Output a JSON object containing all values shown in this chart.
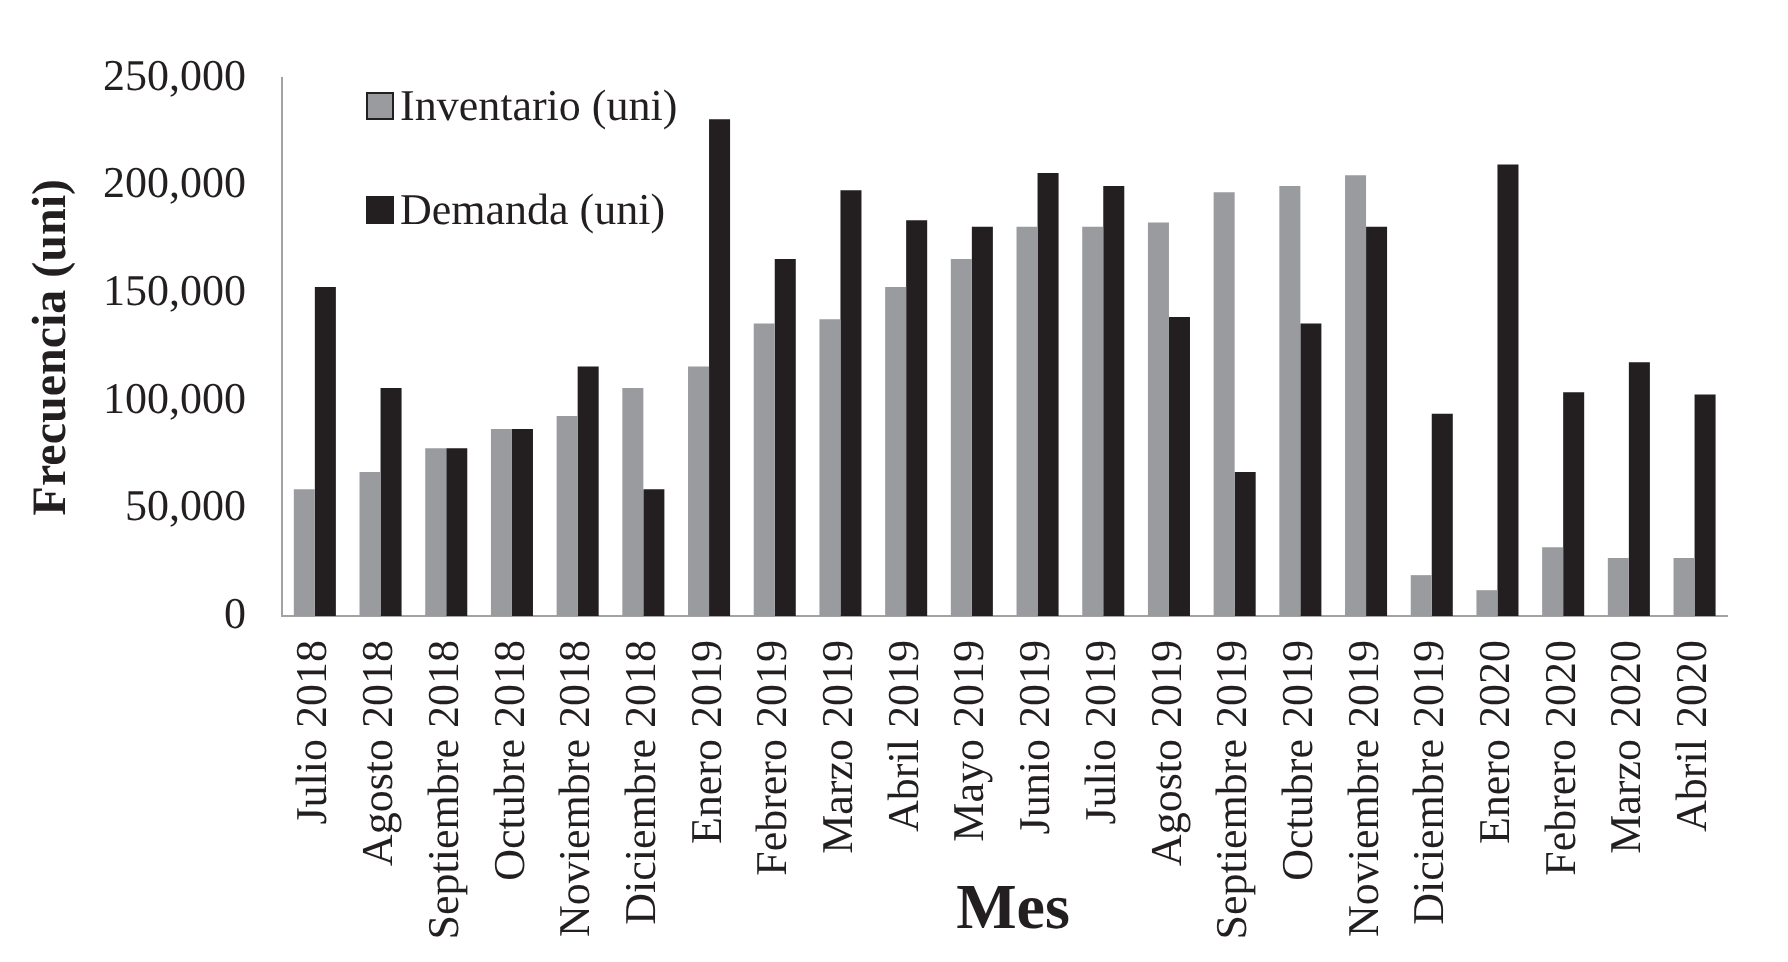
{
  "chart_data": {
    "type": "bar",
    "categories": [
      "Julio 2018",
      "Agosto 2018",
      "Septiembre 2018",
      "Octubre 2018",
      "Noviembre 2018",
      "Diciembre 2018",
      "Enero 2019",
      "Febrero 2019",
      "Marzo 2019",
      "Abril 2019",
      "Mayo 2019",
      "Junio 2019",
      "Julio 2019",
      "Agosto 2019",
      "Septiembre 2019",
      "Octubre 2019",
      "Noviembre 2019",
      "Diciembre 2019",
      "Enero 2020",
      "Febrero 2020",
      "Marzo 2020",
      "Abril 2020"
    ],
    "series": [
      {
        "name": "Inventario (uni)",
        "color": "#9a9b9f",
        "values": [
          59000,
          67000,
          78000,
          87000,
          93000,
          106000,
          116000,
          136000,
          138000,
          153000,
          166000,
          181000,
          181000,
          183000,
          197000,
          200000,
          205000,
          19000,
          12000,
          32000,
          27000,
          27000
        ]
      },
      {
        "name": "Demanda (uni)",
        "color": "#231f20",
        "values": [
          153000,
          106000,
          78000,
          87000,
          116000,
          59000,
          231000,
          166000,
          198000,
          184000,
          181000,
          206000,
          200000,
          139000,
          67000,
          136000,
          181000,
          94000,
          210000,
          104000,
          118000,
          103000
        ]
      }
    ],
    "ylim": [
      0,
      250000
    ],
    "yticks": [
      {
        "value": 0,
        "label": "0"
      },
      {
        "value": 50000,
        "label": "50,000"
      },
      {
        "value": 100000,
        "label": "100,000"
      },
      {
        "value": 150000,
        "label": "150,000"
      },
      {
        "value": 200000,
        "label": "200,000"
      },
      {
        "value": 250000,
        "label": "250,000"
      }
    ],
    "xlabel": "Mes",
    "ylabel": "Frecuencia (uni)",
    "legend": "top left"
  }
}
